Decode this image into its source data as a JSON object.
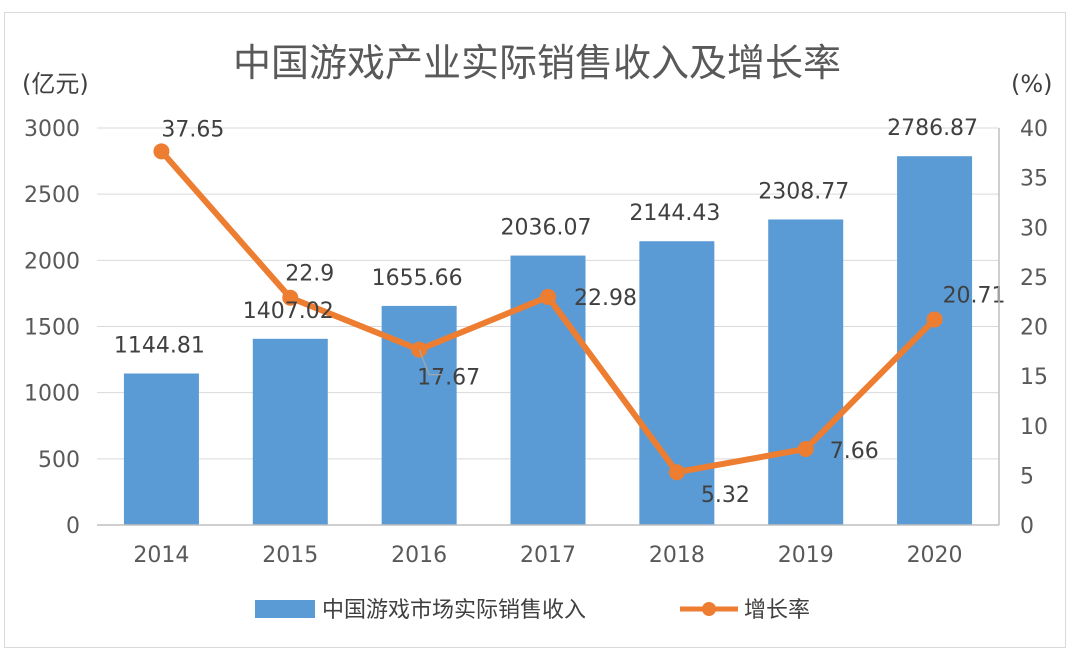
{
  "chart_data": {
    "type": "bar",
    "title": "中国游戏产业实际销售收入及增长率",
    "ylabel_left": "(亿元)",
    "ylabel_right": "(%)",
    "categories": [
      "2014",
      "2015",
      "2016",
      "2017",
      "2018",
      "2019",
      "2020"
    ],
    "ylim_left": [
      0,
      3000
    ],
    "yticks_left": [
      "0",
      "500",
      "1000",
      "1500",
      "2000",
      "2500",
      "3000"
    ],
    "ylim_right": [
      0,
      40
    ],
    "yticks_right": [
      "0",
      "5",
      "10",
      "15",
      "20",
      "25",
      "30",
      "35",
      "40"
    ],
    "grid": true,
    "legend_position": "bottom",
    "series": [
      {
        "name": "中国游戏市场实际销售收入",
        "type": "bar",
        "axis": "left",
        "color": "#5b9bd5",
        "values": [
          1144.81,
          1407.02,
          1655.66,
          2036.07,
          2144.43,
          2308.77,
          2786.87
        ],
        "labels": [
          "1144.81",
          "1407.02",
          "1655.66",
          "2036.07",
          "2144.43",
          "2308.77",
          "2786.87"
        ]
      },
      {
        "name": "增长率",
        "type": "line",
        "axis": "right",
        "color": "#ed7d31",
        "values": [
          37.65,
          22.9,
          17.67,
          22.98,
          5.32,
          7.66,
          20.71
        ],
        "labels": [
          "37.65",
          "22.9",
          "17.67",
          "22.98",
          "5.32",
          "7.66",
          "20.71"
        ]
      }
    ]
  }
}
